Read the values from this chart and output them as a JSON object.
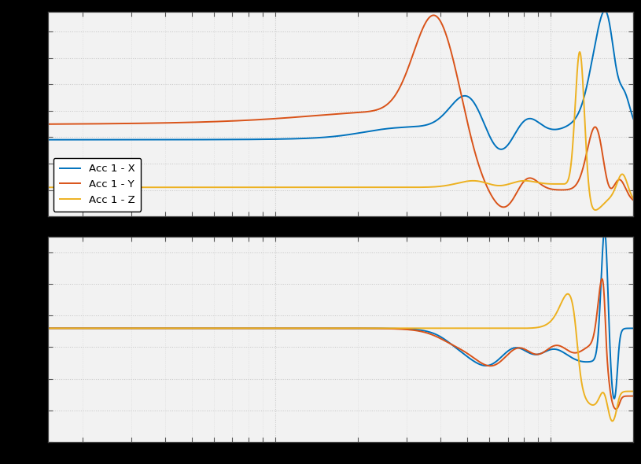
{
  "color_x": "#0072BD",
  "color_y": "#D95319",
  "color_z": "#EDB120",
  "legend_labels": [
    "Acc 1 - X",
    "Acc 1 - Y",
    "Acc 1 - Z"
  ],
  "background_color": "#000000",
  "axes_background": "#f2f2f2",
  "grid_color": "#c8c8c8",
  "line_width": 1.4,
  "fig_width": 8.15,
  "fig_height": 5.9
}
